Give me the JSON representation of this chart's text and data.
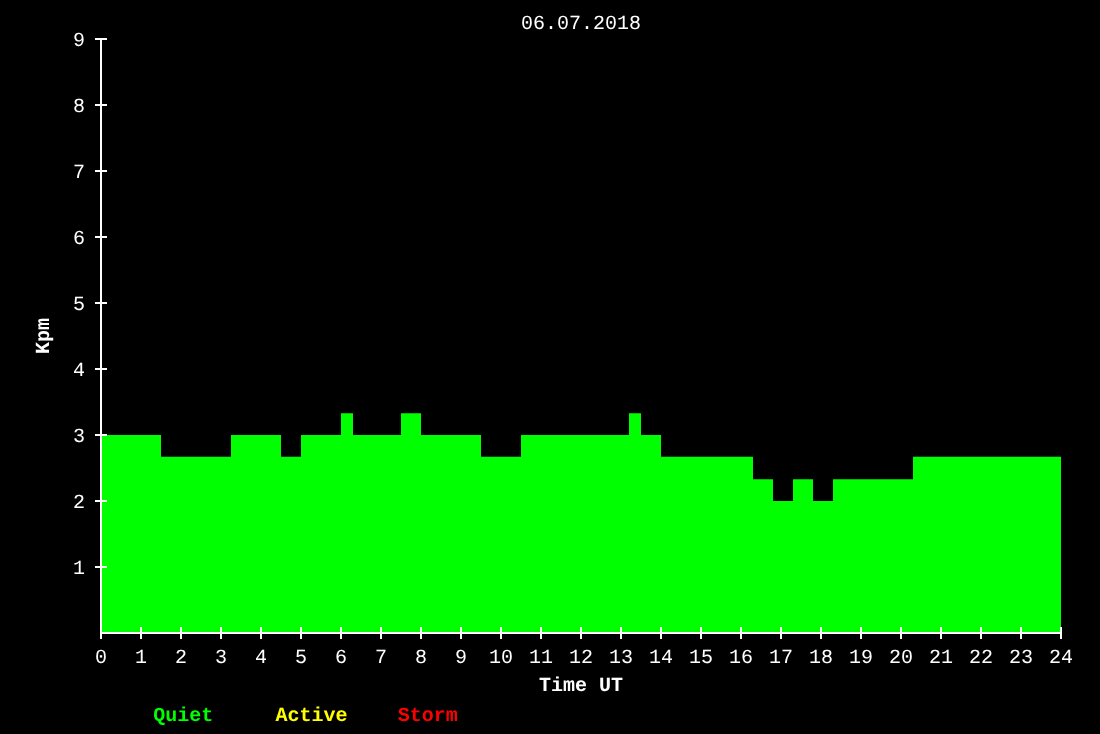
{
  "chart_data": {
    "type": "histogram",
    "title": "06.07.2018",
    "xlabel": "Time UT",
    "ylabel": "Kpm",
    "bins": [
      0,
      1.5,
      3.25,
      4.5,
      5,
      6,
      6.3,
      7.5,
      8,
      9.5,
      10.5,
      13.2,
      13.5,
      14,
      16.3,
      16.8,
      17.3,
      17.8,
      18.3,
      20.3,
      24
    ],
    "series": [
      {
        "name": "Quiet",
        "color": "#00ff00",
        "values": [
          3,
          2.67,
          3,
          2.67,
          3,
          3.33,
          3,
          3.33,
          3,
          2.67,
          3,
          3.33,
          3,
          2.67,
          2.33,
          2,
          2.33,
          2,
          2.33,
          2.67
        ]
      }
    ],
    "annotations": [
      "Active",
      "Storm"
    ],
    "xlim": [
      0,
      24
    ],
    "xticks": [
      0,
      1,
      2,
      3,
      4,
      5,
      6,
      7,
      8,
      9,
      10,
      11,
      12,
      13,
      14,
      15,
      16,
      17,
      18,
      19,
      20,
      21,
      22,
      23,
      24
    ],
    "ylim": [
      0,
      9
    ],
    "yticks": [
      1,
      2,
      3,
      4,
      5,
      6,
      7,
      8,
      9
    ],
    "grid": false
  }
}
